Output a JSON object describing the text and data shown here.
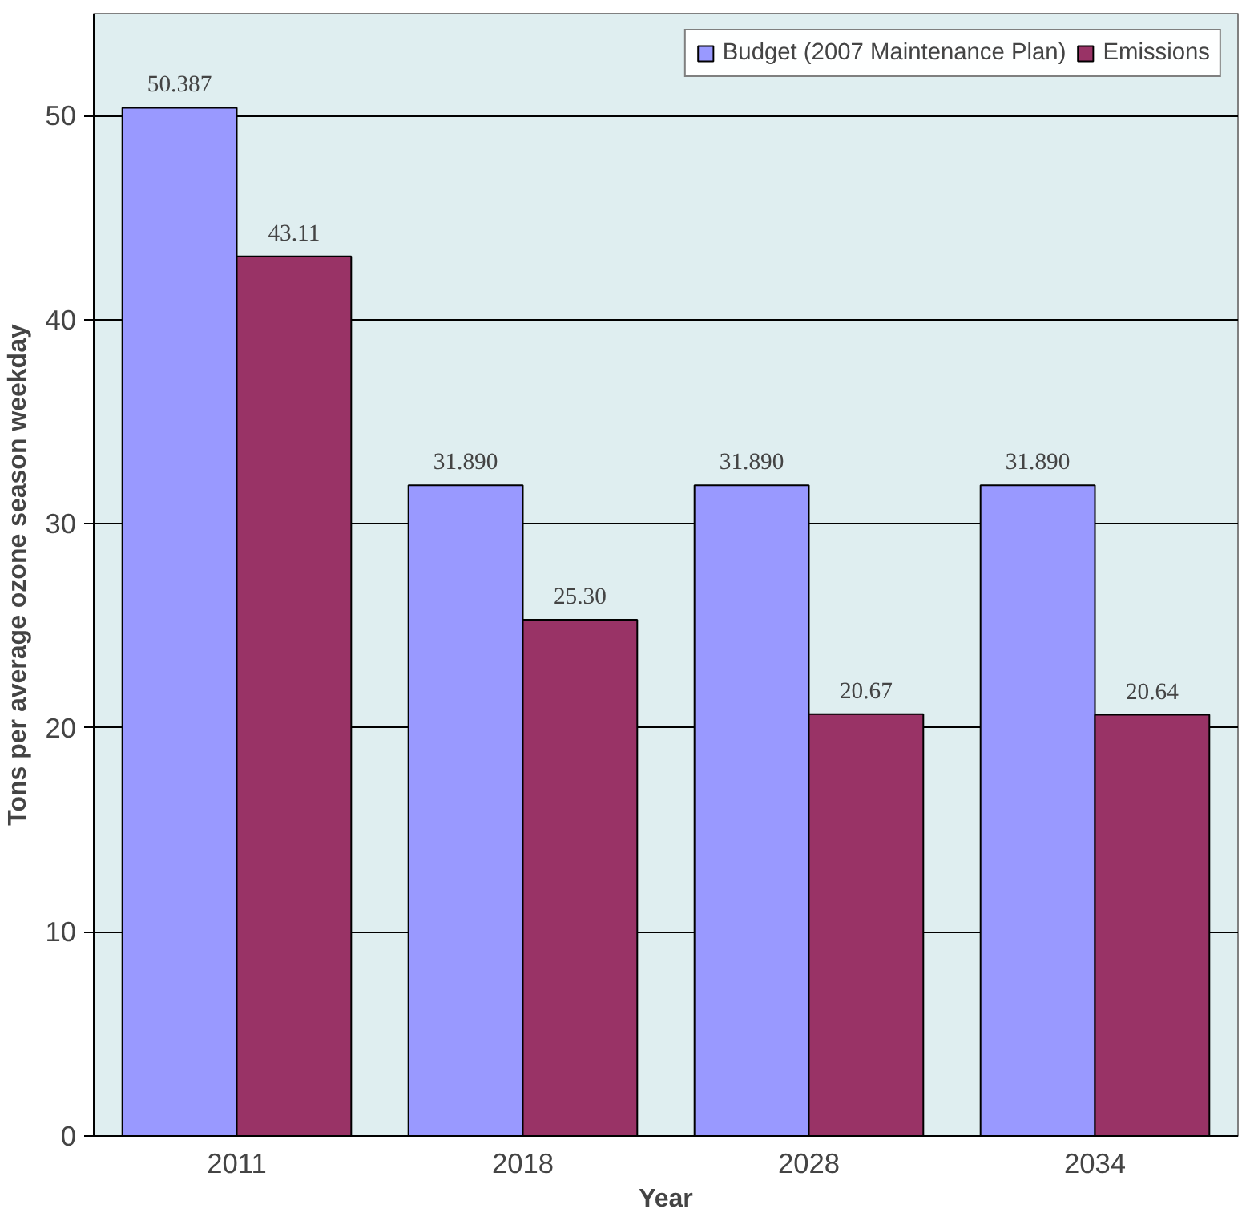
{
  "chart_data": {
    "type": "bar",
    "xlabel": "Year",
    "ylabel": "Tons per average ozone season weekday",
    "categories": [
      "2011",
      "2018",
      "2028",
      "2034"
    ],
    "series": [
      {
        "name": "Budget (2007 Maintenance Plan)",
        "color": "#9999ff",
        "values": [
          50.387,
          31.89,
          31.89,
          31.89
        ],
        "value_labels": [
          "50.387",
          "31.890",
          "31.890",
          "31.890"
        ]
      },
      {
        "name": "Emissions",
        "color": "#993366",
        "values": [
          43.11,
          25.3,
          20.67,
          20.64
        ],
        "value_labels": [
          "43.11",
          "25.30",
          "20.67",
          "20.64"
        ]
      }
    ],
    "ylim": [
      0,
      55
    ],
    "yticks": [
      0,
      10,
      20,
      30,
      40,
      50
    ],
    "grid": "y",
    "legend": "top right"
  }
}
